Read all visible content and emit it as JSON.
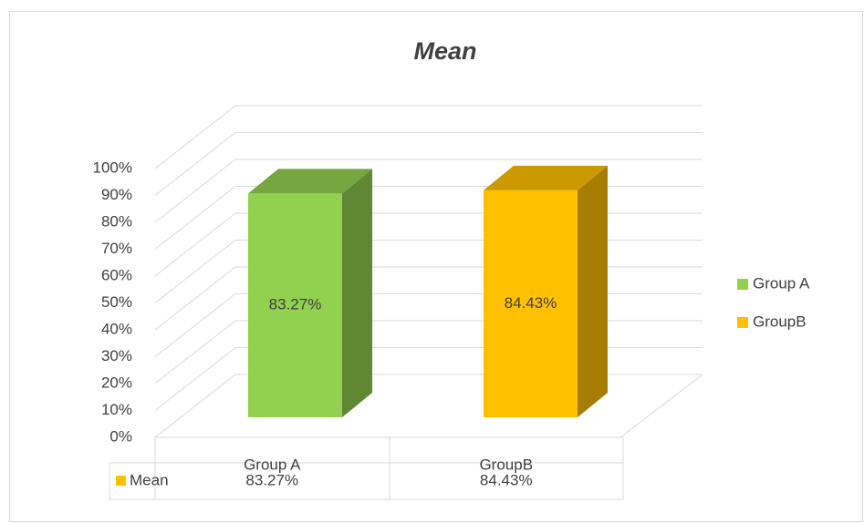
{
  "chart_data": {
    "type": "bar3d",
    "title": "Mean",
    "categories": [
      "Group A",
      "GroupB"
    ],
    "colors": [
      "#92d050",
      "#ffc000"
    ],
    "series": [
      {
        "name": "Mean",
        "color": "#ffc000",
        "values": [
          83.27,
          84.43
        ],
        "value_labels": [
          "83.27%",
          "84.43%"
        ]
      }
    ],
    "ylim": [
      0,
      100
    ],
    "yticks": [
      {
        "value": 0,
        "label": "0%"
      },
      {
        "value": 10,
        "label": "10%"
      },
      {
        "value": 20,
        "label": "20%"
      },
      {
        "value": 30,
        "label": "30%"
      },
      {
        "value": 40,
        "label": "40%"
      },
      {
        "value": 50,
        "label": "50%"
      },
      {
        "value": 60,
        "label": "60%"
      },
      {
        "value": 70,
        "label": "70%"
      },
      {
        "value": 80,
        "label": "80%"
      },
      {
        "value": 90,
        "label": "90%"
      },
      {
        "value": 100,
        "label": "100%"
      }
    ],
    "grid": true,
    "legend": "right",
    "data_table": true
  }
}
